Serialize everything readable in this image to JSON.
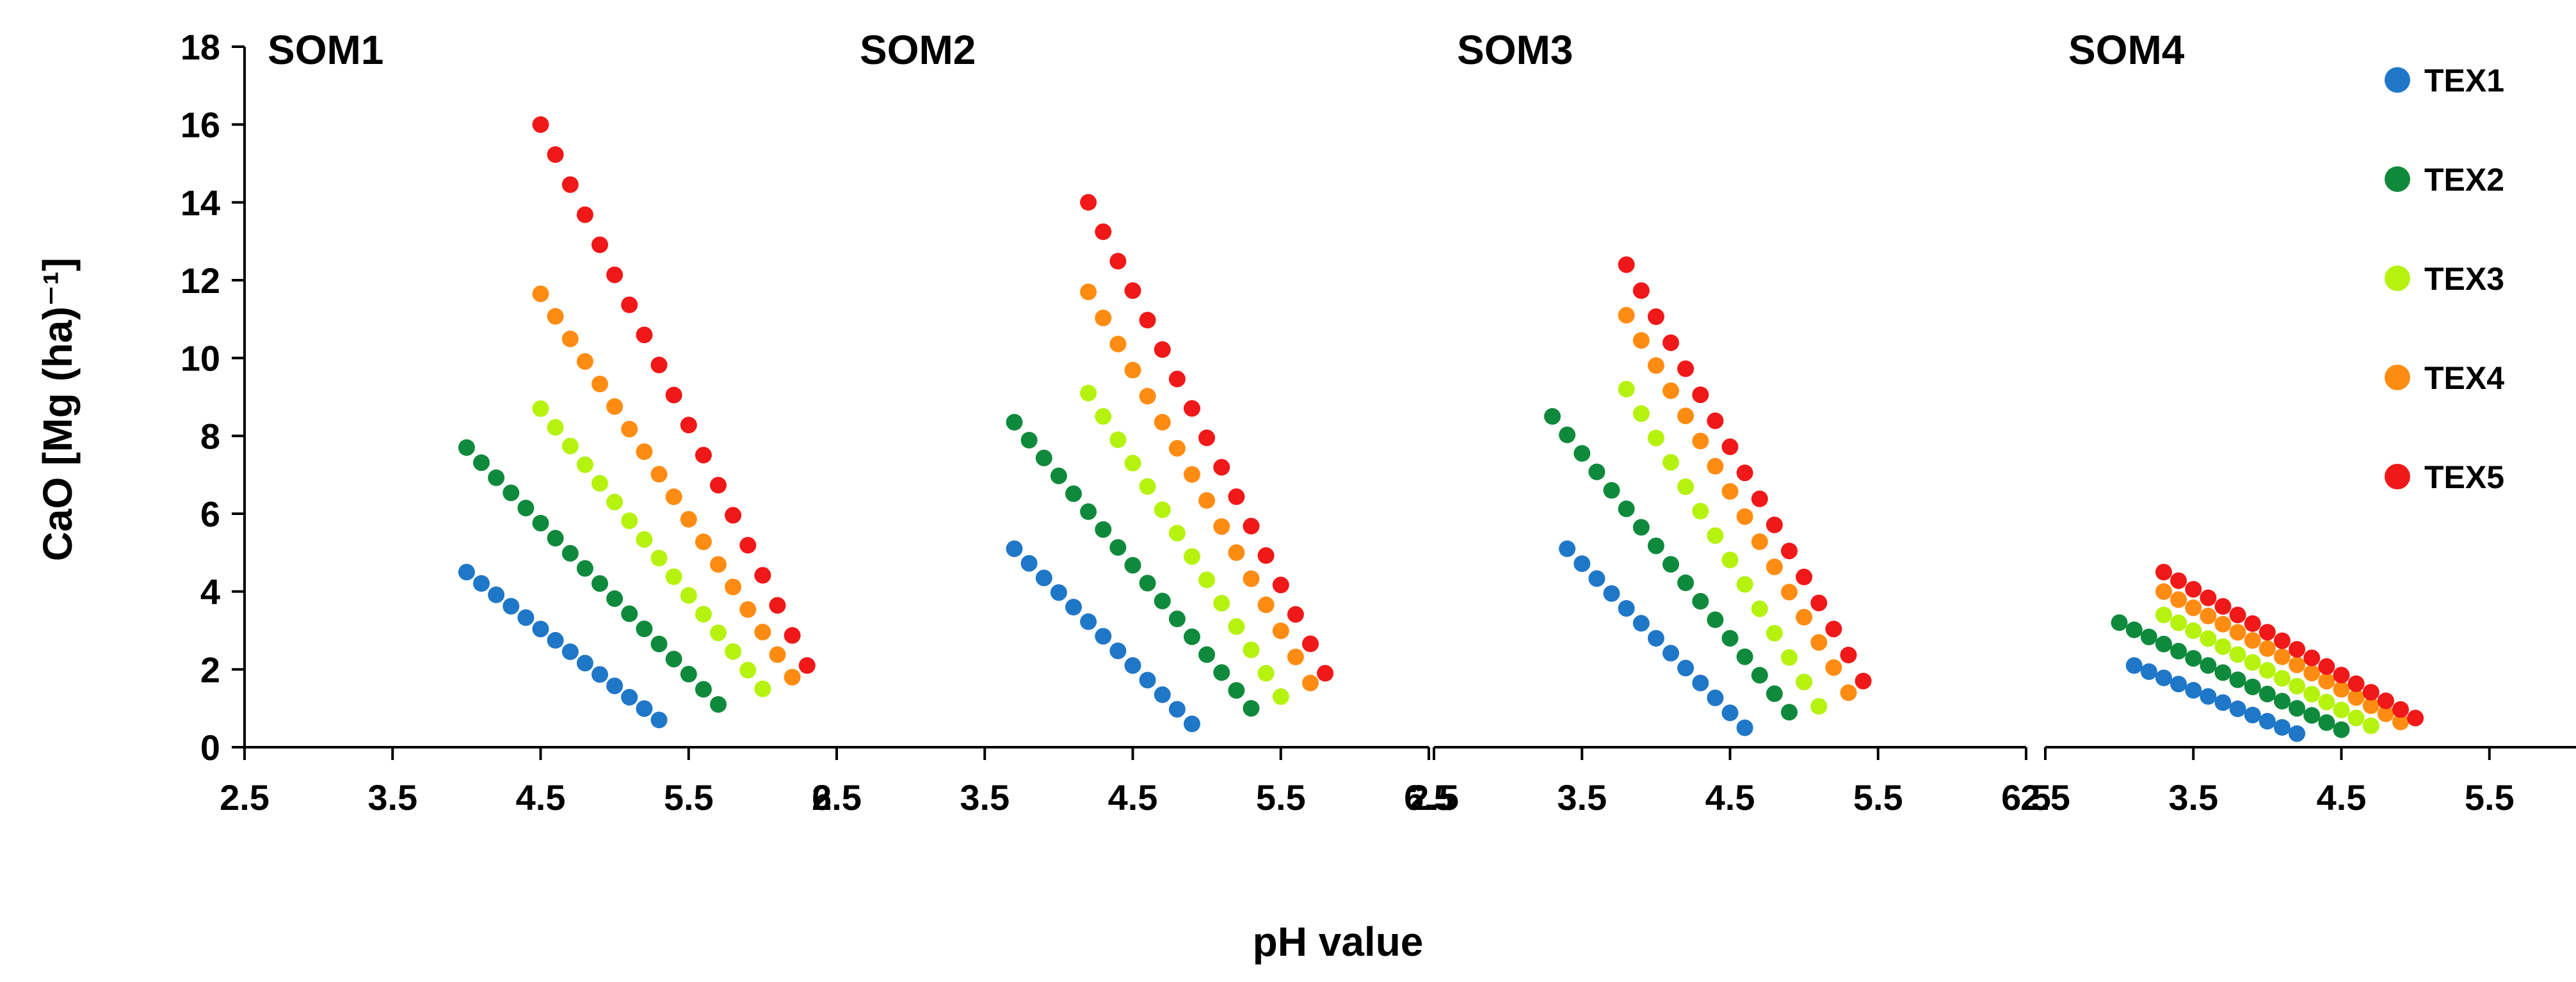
{
  "chart_data": {
    "type": "scatter",
    "ylabel": "CaO [Mg (ha)⁻¹]",
    "xlabel": "pH value",
    "ylim": [
      0,
      18
    ],
    "yticks": [
      0,
      2,
      4,
      6,
      8,
      10,
      12,
      14,
      16,
      18
    ],
    "ytick_labels": [
      "0",
      "2",
      "4",
      "6",
      "8",
      "10",
      "12",
      "14",
      "16",
      "18"
    ],
    "xlim": [
      2.5,
      6.5
    ],
    "xticks": [
      2.5,
      3.5,
      4.5,
      5.5,
      6.5
    ],
    "xtick_labels": [
      "2.5",
      "3.5",
      "4.5",
      "5.5",
      "6.5"
    ],
    "legend_position": "right",
    "series": [
      {
        "name": "TEX1",
        "color": "#1f77c8"
      },
      {
        "name": "TEX2",
        "color": "#0f8a3c"
      },
      {
        "name": "TEX3",
        "color": "#b5f20e"
      },
      {
        "name": "TEX4",
        "color": "#ff8c12"
      },
      {
        "name": "TEX5",
        "color": "#f01818"
      }
    ],
    "panels": [
      {
        "title": "SOM1",
        "series": [
          {
            "name": "TEX1",
            "x_start": 4.0,
            "x_end": 5.3,
            "step": 0.1,
            "y_start": 4.5,
            "y_end": 0.7
          },
          {
            "name": "TEX2",
            "x_start": 4.0,
            "x_end": 5.7,
            "step": 0.1,
            "y_start": 7.7,
            "y_end": 1.1
          },
          {
            "name": "TEX3",
            "x_start": 4.5,
            "x_end": 6.0,
            "step": 0.1,
            "y_start": 8.7,
            "y_end": 1.5
          },
          {
            "name": "TEX4",
            "x_start": 4.5,
            "x_end": 6.2,
            "step": 0.1,
            "y_start": 11.65,
            "y_end": 1.8
          },
          {
            "name": "TEX5",
            "x_start": 4.5,
            "x_end": 6.3,
            "step": 0.1,
            "y_start": 16.0,
            "y_end": 2.1
          }
        ]
      },
      {
        "title": "SOM2",
        "series": [
          {
            "name": "TEX1",
            "x_start": 3.7,
            "x_end": 4.9,
            "step": 0.1,
            "y_start": 5.1,
            "y_end": 0.6
          },
          {
            "name": "TEX2",
            "x_start": 3.7,
            "x_end": 5.3,
            "step": 0.1,
            "y_start": 8.35,
            "y_end": 1.0
          },
          {
            "name": "TEX3",
            "x_start": 4.2,
            "x_end": 5.5,
            "step": 0.1,
            "y_start": 9.1,
            "y_end": 1.3
          },
          {
            "name": "TEX4",
            "x_start": 4.2,
            "x_end": 5.7,
            "step": 0.1,
            "y_start": 11.7,
            "y_end": 1.65
          },
          {
            "name": "TEX5",
            "x_start": 4.2,
            "x_end": 5.8,
            "step": 0.1,
            "y_start": 14.0,
            "y_end": 1.9
          }
        ]
      },
      {
        "title": "SOM3",
        "series": [
          {
            "name": "TEX1",
            "x_start": 3.4,
            "x_end": 4.6,
            "step": 0.1,
            "y_start": 5.1,
            "y_end": 0.5
          },
          {
            "name": "TEX2",
            "x_start": 3.3,
            "x_end": 4.9,
            "step": 0.1,
            "y_start": 8.5,
            "y_end": 0.9
          },
          {
            "name": "TEX3",
            "x_start": 3.8,
            "x_end": 5.1,
            "step": 0.1,
            "y_start": 9.2,
            "y_end": 1.05
          },
          {
            "name": "TEX4",
            "x_start": 3.8,
            "x_end": 5.3,
            "step": 0.1,
            "y_start": 11.1,
            "y_end": 1.4
          },
          {
            "name": "TEX5",
            "x_start": 3.8,
            "x_end": 5.4,
            "step": 0.1,
            "y_start": 12.4,
            "y_end": 1.7
          }
        ]
      },
      {
        "title": "SOM4",
        "series": [
          {
            "name": "TEX1",
            "x_start": 3.1,
            "x_end": 4.2,
            "step": 0.1,
            "y_start": 2.1,
            "y_end": 0.35
          },
          {
            "name": "TEX2",
            "x_start": 3.0,
            "x_end": 4.5,
            "step": 0.1,
            "y_start": 3.2,
            "y_end": 0.45
          },
          {
            "name": "TEX3",
            "x_start": 3.3,
            "x_end": 4.7,
            "step": 0.1,
            "y_start": 3.4,
            "y_end": 0.55
          },
          {
            "name": "TEX4",
            "x_start": 3.3,
            "x_end": 4.9,
            "step": 0.1,
            "y_start": 4.0,
            "y_end": 0.65
          },
          {
            "name": "TEX5",
            "x_start": 3.3,
            "x_end": 5.0,
            "step": 0.1,
            "y_start": 4.5,
            "y_end": 0.75
          }
        ]
      }
    ]
  }
}
